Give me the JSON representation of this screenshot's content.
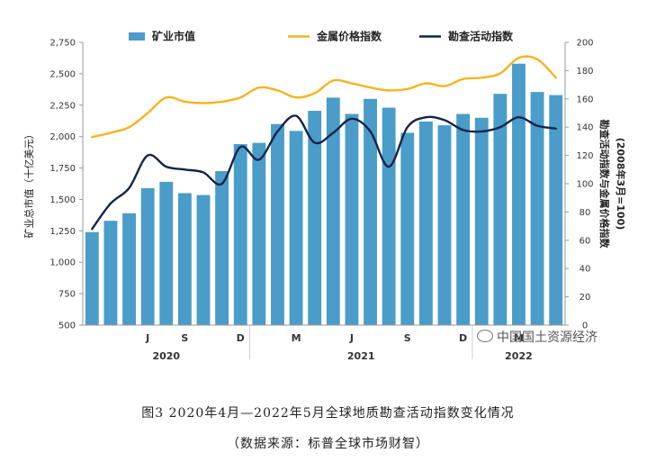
{
  "chart_data": {
    "type": "bar",
    "x": [
      "2020-04",
      "2020-05",
      "2020-06",
      "2020-07",
      "2020-08",
      "2020-09",
      "2020-10",
      "2020-11",
      "2020-12",
      "2021-01",
      "2021-02",
      "2021-03",
      "2021-04",
      "2021-05",
      "2021-06",
      "2021-07",
      "2021-08",
      "2021-09",
      "2021-10",
      "2021-11",
      "2021-12",
      "2022-01",
      "2022-02",
      "2022-03",
      "2022-04",
      "2022-05"
    ],
    "x_tick_labels": [
      {
        "x": "2020-07",
        "label": "J"
      },
      {
        "x": "2020-09",
        "label": "S"
      },
      {
        "x": "2020-12",
        "label": "D"
      },
      {
        "x": "2021-03",
        "label": "M"
      },
      {
        "x": "2021-06",
        "label": "J"
      },
      {
        "x": "2021-09",
        "label": "S"
      },
      {
        "x": "2021-12",
        "label": "D"
      },
      {
        "x": "2022-03",
        "label": "M"
      }
    ],
    "year_labels": [
      {
        "label": "2020",
        "from": "2020-04",
        "to": "2020-12"
      },
      {
        "label": "2021",
        "from": "2021-01",
        "to": "2021-12"
      },
      {
        "label": "2022",
        "from": "2022-01",
        "to": "2022-05"
      }
    ],
    "series": [
      {
        "name": "矿业市值",
        "kind": "bar",
        "axis": "left",
        "color": "#4a9cc9",
        "values": [
          1240,
          1330,
          1390,
          1590,
          1640,
          1550,
          1535,
          1725,
          1940,
          1950,
          2100,
          2045,
          2205,
          2310,
          2180,
          2300,
          2230,
          2030,
          2120,
          2090,
          2180,
          2150,
          2340,
          2580,
          2355,
          2330
        ]
      },
      {
        "name": "金属价格指数",
        "kind": "line",
        "axis": "right",
        "color": "#f7b31e",
        "values": [
          133,
          136,
          140,
          150,
          161,
          158,
          157,
          158,
          161,
          168,
          166,
          161,
          164,
          173,
          171,
          168,
          166,
          167,
          171,
          169,
          174,
          175,
          178,
          189,
          188,
          175
        ]
      },
      {
        "name": "勘查活动指数",
        "kind": "line",
        "axis": "right",
        "color": "#13244a",
        "values": [
          68,
          86,
          97,
          120,
          112,
          110,
          108,
          100,
          126,
          117,
          137,
          148,
          129,
          136,
          146,
          137,
          112,
          140,
          147,
          145,
          138,
          137,
          140,
          147,
          141,
          139
        ]
      }
    ],
    "y_left": {
      "label": "矿业总市值（十亿美元）",
      "min": 500,
      "max": 2750,
      "ticks": [
        "500",
        "750",
        "1,000",
        "1,250",
        "1,500",
        "1,750",
        "2,000",
        "2,250",
        "2,500",
        "2,750"
      ]
    },
    "y_right": {
      "label": "勘查活动指数与金属价格指数",
      "label2": "(2008年3月=100)",
      "min": 0,
      "max": 200,
      "ticks": [
        "0",
        "20",
        "40",
        "60",
        "80",
        "100",
        "120",
        "140",
        "160",
        "180",
        "200"
      ]
    },
    "grid": false,
    "legend_position": "top"
  },
  "caption": {
    "title": "图3  2020年4月—2022年5月全球地质勘查活动指数变化情况",
    "source": "（数据来源：标普全球市场财智）"
  },
  "watermark": "中国国土资源经济",
  "colors": {
    "bars": "#4a9cc9",
    "metal_line": "#f7b31e",
    "exploration_line": "#13244a",
    "axis": "#999999"
  }
}
